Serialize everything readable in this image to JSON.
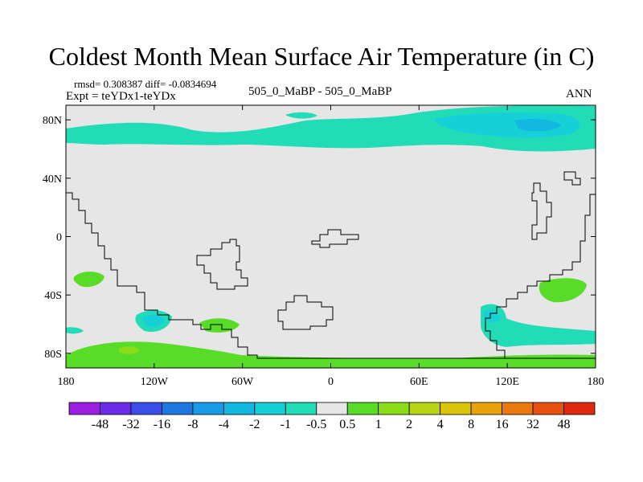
{
  "chart_data": {
    "type": "contour-map",
    "title": "Coldest Month Mean Surface Air Temperature (in C)",
    "stats_line": "rmsd= 0.308387 diff= -0.0834694",
    "experiment_line": "Expt = teYDx1-teYDx",
    "comparison": "505_0_MaBP - 505_0_MaBP",
    "season": "ANN",
    "xlim": [
      -180,
      180
    ],
    "ylim": [
      -90,
      90
    ],
    "x_ticks": [
      {
        "lon": -180,
        "label": "180"
      },
      {
        "lon": -120,
        "label": "120W"
      },
      {
        "lon": -60,
        "label": "60W"
      },
      {
        "lon": 0,
        "label": "0"
      },
      {
        "lon": 60,
        "label": "60E"
      },
      {
        "lon": 120,
        "label": "120E"
      },
      {
        "lon": 180,
        "label": "180"
      }
    ],
    "y_ticks": [
      {
        "lat": 80,
        "label": "80N"
      },
      {
        "lat": 40,
        "label": "40N"
      },
      {
        "lat": 0,
        "label": "0"
      },
      {
        "lat": -40,
        "label": "40S"
      },
      {
        "lat": -80,
        "label": "80S"
      }
    ],
    "colorbar": {
      "levels": [
        "-48",
        "-32",
        "-16",
        "-8",
        "-4",
        "-2",
        "-1",
        "-0.5",
        "0.5",
        "1",
        "2",
        "4",
        "8",
        "16",
        "32",
        "48"
      ],
      "colors": [
        "#9b1fe0",
        "#6a2ae8",
        "#3b4fe8",
        "#1f78e0",
        "#1a9be8",
        "#12b8e0",
        "#16d0d8",
        "#22dcb8",
        "#e6e6e6",
        "#58dc28",
        "#8cdc1a",
        "#b8d414",
        "#dcc40c",
        "#e8a20c",
        "#ea7a10",
        "#e85210",
        "#e02a10"
      ]
    },
    "fields": [
      {
        "name": "arctic-band",
        "value_class": "-1 to -0.5"
      },
      {
        "name": "arctic-core",
        "value_class": "-2 to -1"
      },
      {
        "name": "south-west-pacific-patch",
        "value_class": "0.5 to 1"
      },
      {
        "name": "southern-ocean-west-patch",
        "value_class": "-1 to -0.5"
      },
      {
        "name": "antarctic-coast-band",
        "value_class": "0.5 to 1"
      },
      {
        "name": "antarctic-warm-spot",
        "value_class": "1 to 2"
      },
      {
        "name": "indian-ocean-south-patch",
        "value_class": "0.5 to 1"
      },
      {
        "name": "southern-ocean-east-patch",
        "value_class": "-1 to -0.5"
      }
    ]
  }
}
